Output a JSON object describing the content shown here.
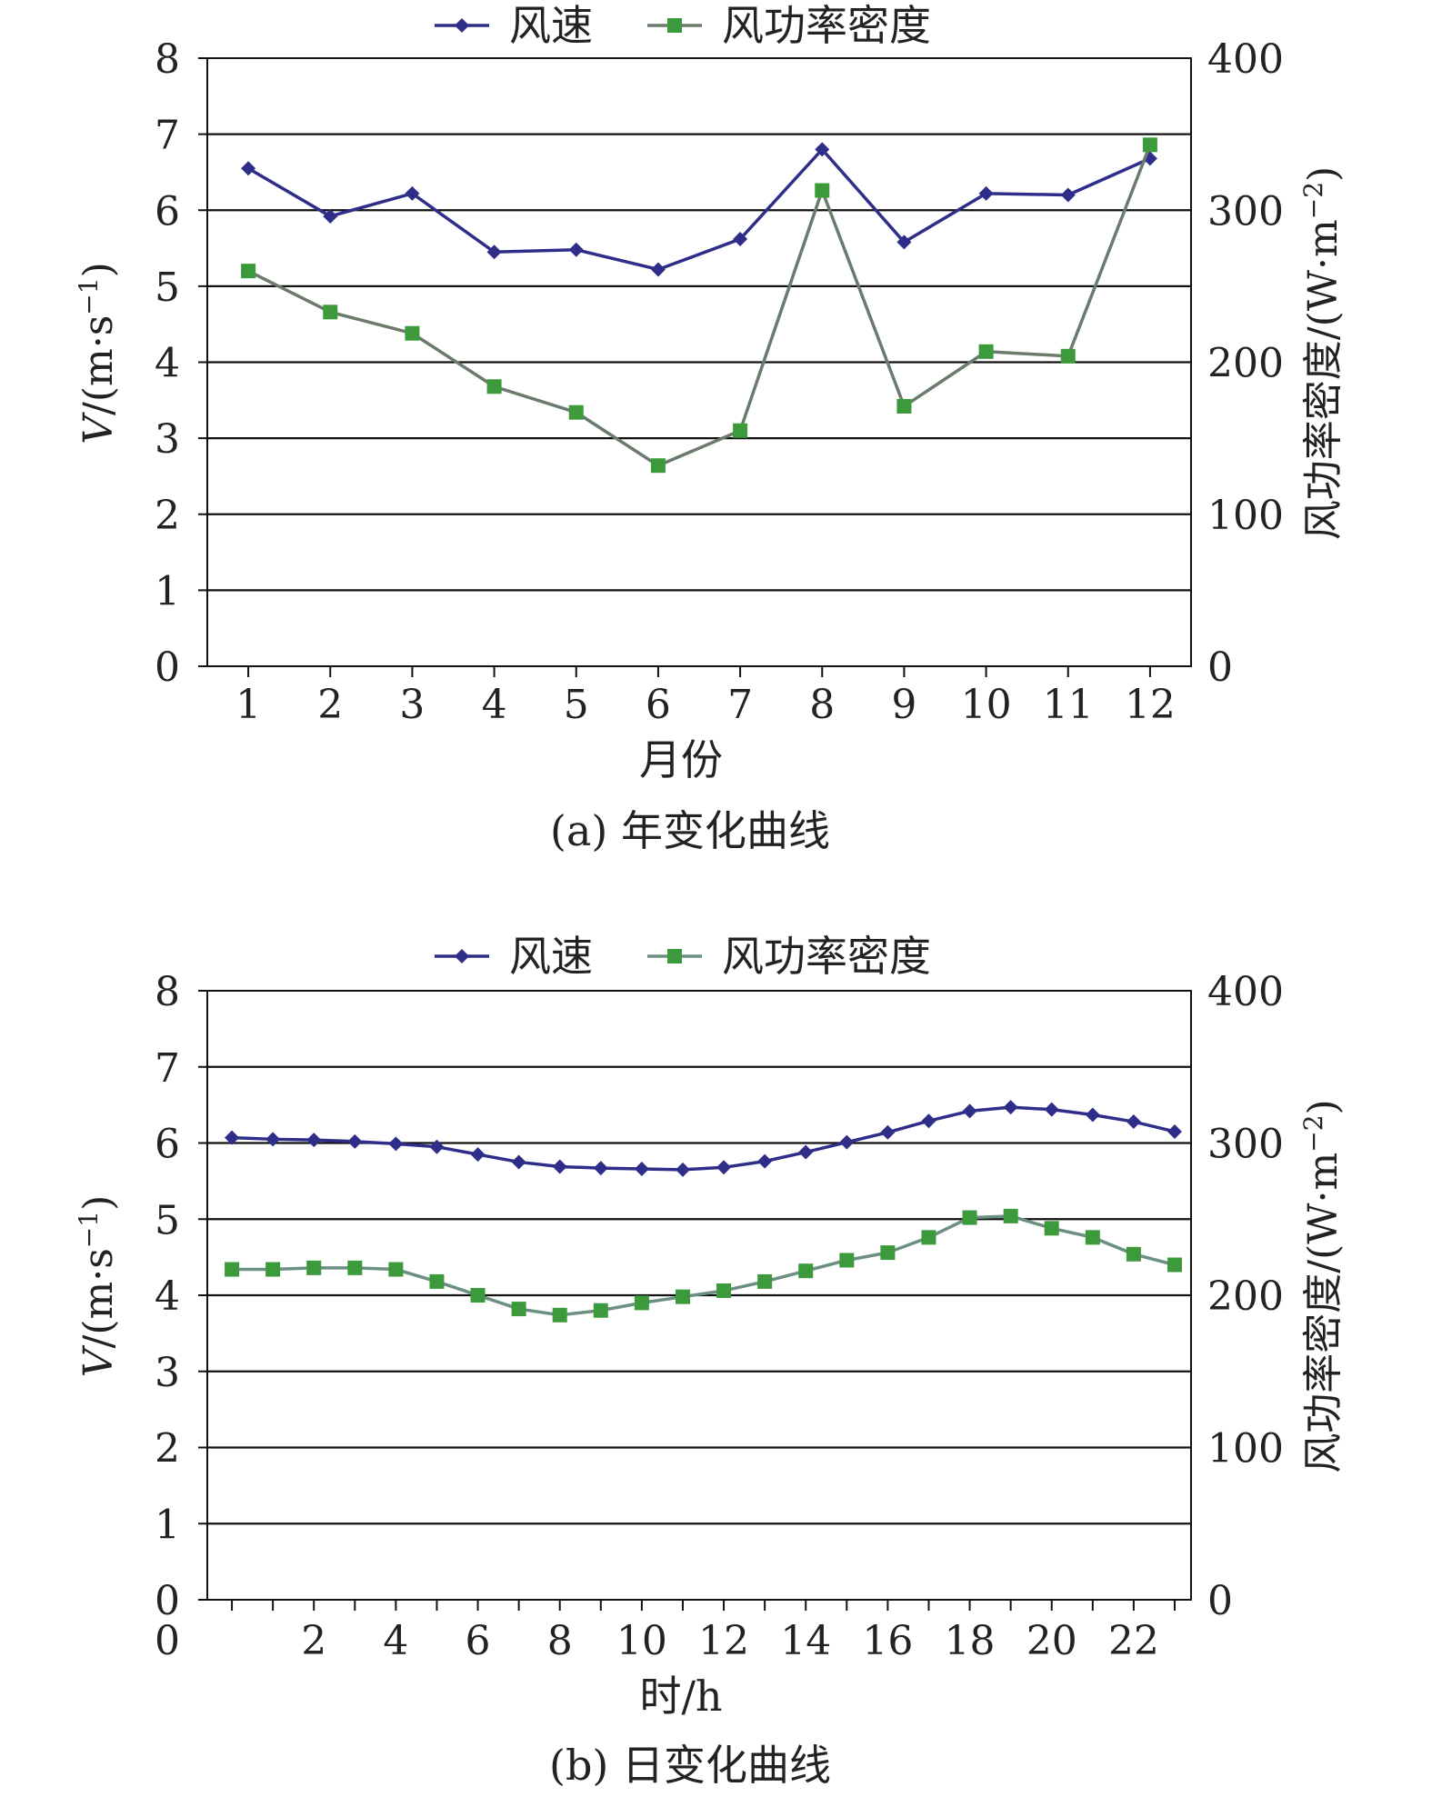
{
  "chart_data": [
    {
      "type": "line",
      "caption": "(a) 年变化曲线",
      "legend": {
        "placement": "top",
        "entries": [
          "风速",
          "风功率密度"
        ]
      },
      "xlabel": "月份",
      "ylabel_left": {
        "italic": "V",
        "rest": "/(m·s",
        "sup": "−1",
        "close": ")"
      },
      "ylabel_right": {
        "main": "风功率密度/(W·m",
        "sup": "−2",
        "close": ")"
      },
      "xlim": [
        0.5,
        12.5
      ],
      "ylim_left": [
        0,
        8
      ],
      "ylim_right": [
        0,
        400
      ],
      "yticks_left": [
        "0",
        "1",
        "2",
        "3",
        "4",
        "5",
        "6",
        "7",
        "8"
      ],
      "yticks_right": [
        "0",
        "100",
        "200",
        "300",
        "400"
      ],
      "xticks": [
        1,
        2,
        3,
        4,
        5,
        6,
        7,
        8,
        9,
        10,
        11,
        12
      ],
      "xticklabels": [
        "1",
        "2",
        "3",
        "4",
        "5",
        "6",
        "7",
        "8",
        "9",
        "10",
        "11",
        "12"
      ],
      "grid": true,
      "series": [
        {
          "name": "风速",
          "axis": "left",
          "color": "#2e2e8a",
          "marker": "diamond",
          "x": [
            1,
            2,
            3,
            4,
            5,
            6,
            7,
            8,
            9,
            10,
            11,
            12
          ],
          "values": [
            6.55,
            5.92,
            6.22,
            5.45,
            5.48,
            5.22,
            5.62,
            6.8,
            5.58,
            6.22,
            6.2,
            6.68
          ]
        },
        {
          "name": "风功率密度",
          "axis": "right",
          "color": "#6b7b6b",
          "marker_color": "#3c9a3c",
          "marker": "square",
          "x": [
            1,
            2,
            3,
            4,
            5,
            6,
            7,
            8,
            9,
            10,
            11,
            12
          ],
          "values": [
            260,
            233,
            219,
            184,
            167,
            132,
            155,
            313,
            171,
            207,
            204,
            343
          ]
        }
      ]
    },
    {
      "type": "line",
      "caption": "(b) 日变化曲线",
      "legend": {
        "placement": "top",
        "entries": [
          "风速",
          "风功率密度"
        ]
      },
      "xlabel": "时/h",
      "ylabel_left": {
        "italic": "V",
        "rest": "/(m·s",
        "sup": "−1",
        "close": ")"
      },
      "ylabel_right": {
        "main": "风功率密度/(W·m",
        "sup": "−2",
        "close": ")"
      },
      "xlim": [
        -0.6,
        23.4
      ],
      "ylim_left": [
        0,
        8
      ],
      "ylim_right": [
        0,
        400
      ],
      "yticks_left": [
        "0",
        "1",
        "2",
        "3",
        "4",
        "5",
        "6",
        "7",
        "8"
      ],
      "yticks_right": [
        "0",
        "100",
        "200",
        "300",
        "400"
      ],
      "xticks": [
        0,
        1,
        2,
        3,
        4,
        5,
        6,
        7,
        8,
        9,
        10,
        11,
        12,
        13,
        14,
        15,
        16,
        17,
        18,
        19,
        20,
        21,
        22,
        23
      ],
      "xticklabels": [
        "2",
        "4",
        "6",
        "8",
        "10",
        "12",
        "14",
        "16",
        "18",
        "20",
        "22"
      ],
      "xticklabel_positions": [
        2,
        4,
        6,
        8,
        10,
        12,
        14,
        16,
        18,
        20,
        22
      ],
      "grid": true,
      "series": [
        {
          "name": "风速",
          "axis": "left",
          "color": "#2e2e8a",
          "marker": "diamond",
          "x": [
            0,
            1,
            2,
            3,
            4,
            5,
            6,
            7,
            8,
            9,
            10,
            11,
            12,
            13,
            14,
            15,
            16,
            17,
            18,
            19,
            20,
            21,
            22,
            23
          ],
          "values": [
            6.07,
            6.05,
            6.04,
            6.02,
            5.99,
            5.95,
            5.85,
            5.75,
            5.69,
            5.67,
            5.66,
            5.65,
            5.68,
            5.76,
            5.88,
            6.01,
            6.14,
            6.29,
            6.42,
            6.47,
            6.44,
            6.37,
            6.28,
            6.15
          ]
        },
        {
          "name": "风功率密度",
          "axis": "right",
          "color": "#6b8f80",
          "marker_color": "#3c9a3c",
          "marker": "square",
          "x": [
            0,
            1,
            2,
            3,
            4,
            5,
            6,
            7,
            8,
            9,
            10,
            11,
            12,
            13,
            14,
            15,
            16,
            17,
            18,
            19,
            20,
            21,
            22,
            23
          ],
          "values": [
            217,
            217,
            218,
            218,
            217,
            209,
            200,
            191,
            187,
            190,
            195,
            199,
            203,
            209,
            216,
            223,
            228,
            238,
            251,
            252,
            244,
            238,
            227,
            220
          ]
        }
      ]
    }
  ]
}
